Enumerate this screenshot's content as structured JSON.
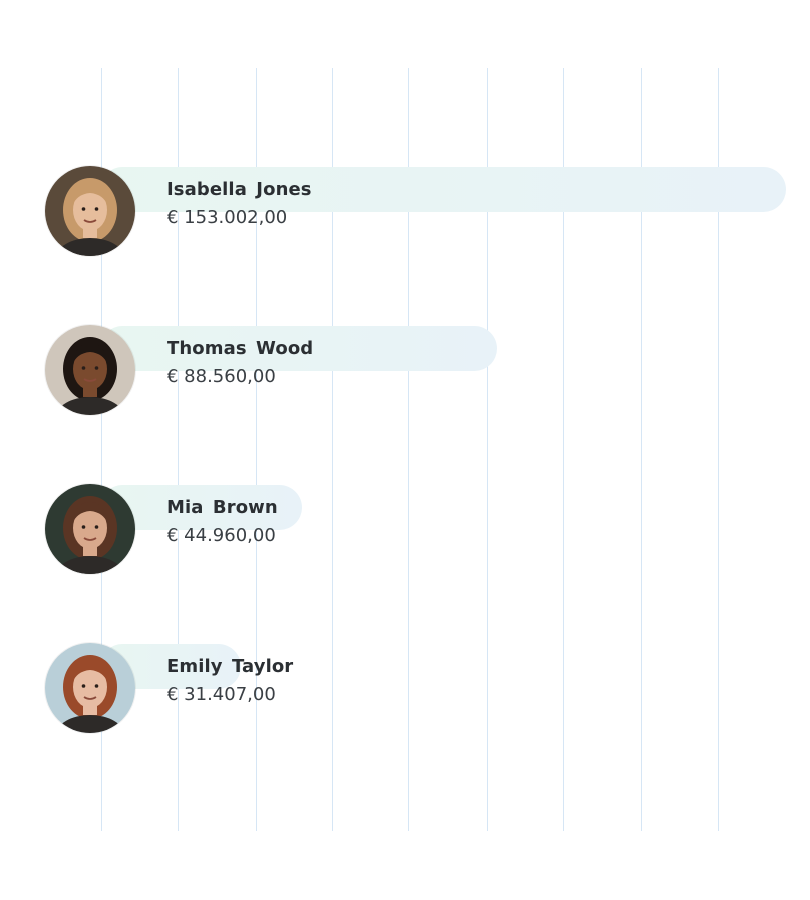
{
  "chart_data": {
    "type": "bar",
    "orientation": "horizontal",
    "categories": [
      "Isabella Jones",
      "Thomas Wood",
      "Mia Brown",
      "Emily Taylor"
    ],
    "values": [
      153002,
      88560,
      44960,
      31407
    ],
    "value_labels": [
      "€ 153.002,00",
      "€ 88.560,00",
      "€ 44.960,00",
      "€ 31.407,00"
    ],
    "xlim": [
      0,
      153002
    ],
    "grid": true,
    "legend": "none",
    "colors": {
      "bar_start": "#e8f6f1",
      "bar_end": "#e8f2f8",
      "grid": "#d6e6f5"
    }
  },
  "avatars": [
    {
      "icon": "woman-blonde-avatar-icon",
      "hair": "#c79a6a",
      "skin": "#e6bd9c",
      "bg": "#5a4a3a"
    },
    {
      "icon": "man-smiling-avatar-icon",
      "hair": "#1e1612",
      "skin": "#7a4a2e",
      "bg": "#cfc6bb"
    },
    {
      "icon": "woman-brunette-avatar-icon",
      "hair": "#5a3524",
      "skin": "#d9a98c",
      "bg": "#2e3a32"
    },
    {
      "icon": "woman-redhead-avatar-icon",
      "hair": "#9a4a2a",
      "skin": "#e7bca3",
      "bg": "#b9cfd8"
    }
  ]
}
